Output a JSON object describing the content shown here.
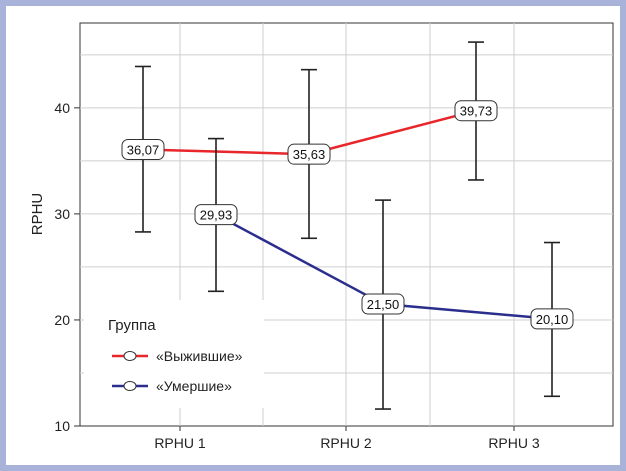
{
  "chart_data": {
    "type": "line",
    "title": "",
    "xlabel": "",
    "ylabel": "RPHU",
    "categories": [
      "RPHU 1",
      "RPHU 2",
      "RPHU 3"
    ],
    "ylim": [
      10,
      48
    ],
    "yticks": [
      10,
      20,
      30,
      40
    ],
    "grid": true,
    "legend": {
      "title": "Группа",
      "position": "bottom-left"
    },
    "series": [
      {
        "name": "«Выжившие»",
        "color": "#e8262b",
        "values": [
          36.07,
          35.63,
          39.73
        ],
        "labels": [
          "36,07",
          "35,63",
          "39,73"
        ],
        "error_low": [
          28.3,
          27.7,
          33.2
        ],
        "error_high": [
          43.9,
          43.6,
          46.2
        ]
      },
      {
        "name": "«Умершие»",
        "color": "#2b2e8c",
        "values": [
          29.93,
          21.5,
          20.1
        ],
        "labels": [
          "29,93",
          "21,50",
          "20,10"
        ],
        "error_low": [
          22.7,
          11.6,
          12.8
        ],
        "error_high": [
          37.1,
          31.3,
          27.3
        ]
      }
    ]
  },
  "colors": {
    "frame_border": "#a9b3d9",
    "grid": "#cfcfcf",
    "axis": "#333333"
  }
}
